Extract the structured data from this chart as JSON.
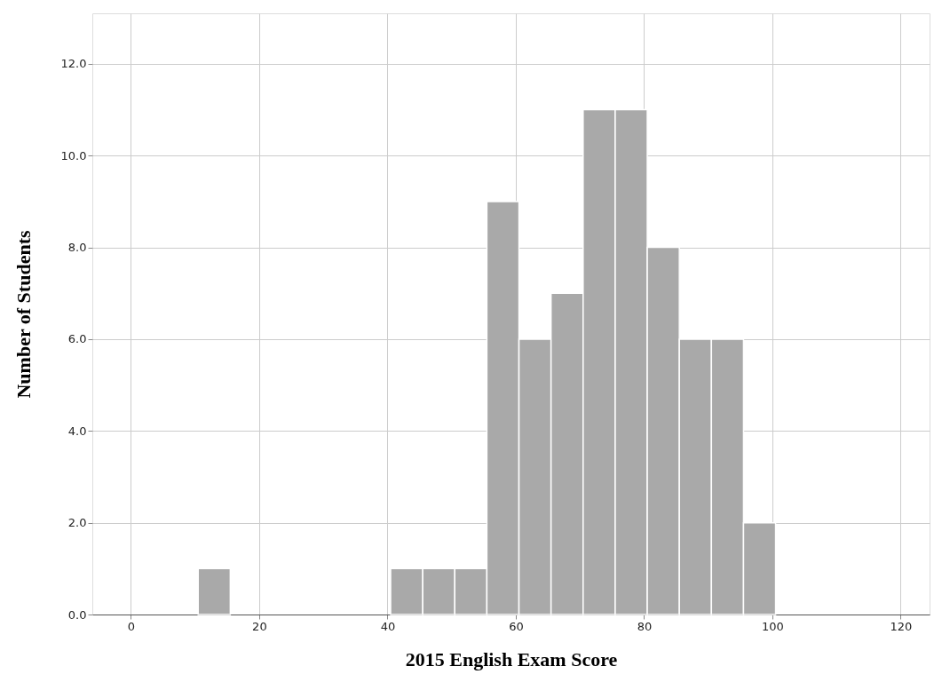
{
  "chart_data": {
    "type": "histogram",
    "xlabel": "2015 English Exam Score",
    "ylabel": "Number of Students",
    "bins": [
      10.5,
      15.5,
      20.5,
      25.5,
      30.5,
      35.5,
      40.5,
      45.5,
      50.5,
      55.5,
      60.5,
      65.5,
      70.5,
      75.5,
      80.5,
      85.5,
      90.5,
      95.5,
      100.5
    ],
    "values": [
      1,
      0,
      0,
      0,
      0,
      0,
      1,
      1,
      1,
      9,
      6,
      7,
      11,
      11,
      8,
      6,
      6,
      2
    ],
    "color": "#a9a9a9",
    "xlim": [
      -6,
      124.5
    ],
    "xticks": [
      0,
      20,
      40,
      60,
      80,
      100,
      120
    ],
    "ylim": [
      0,
      13.1
    ],
    "yticks": [
      {
        "value": 0,
        "label": "0.0"
      },
      {
        "value": 2,
        "label": "2.0"
      },
      {
        "value": 4,
        "label": "4.0"
      },
      {
        "value": 6,
        "label": "6.0"
      },
      {
        "value": 8,
        "label": "8.0"
      },
      {
        "value": 10,
        "label": "10.0"
      },
      {
        "value": 12,
        "label": "12.0"
      }
    ],
    "grid": true
  }
}
